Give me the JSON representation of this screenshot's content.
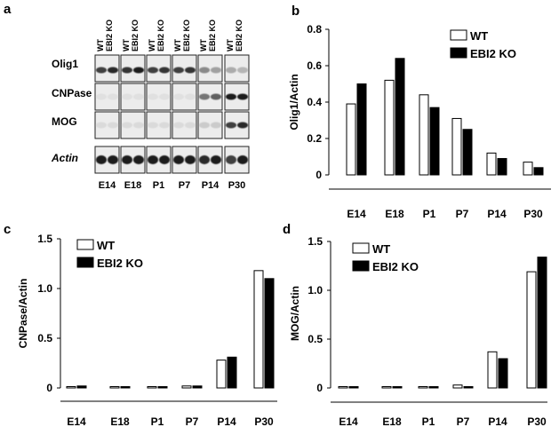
{
  "panel_letters": [
    "a",
    "b",
    "c",
    "d"
  ],
  "blot": {
    "lanes": [
      "WT",
      "EBI2 KO",
      "WT",
      "EBI2 KO",
      "WT",
      "EBI2 KO",
      "WT",
      "EBI2 KO",
      "WT",
      "EBI2 KO",
      "WT",
      "EBI2 KO"
    ],
    "rows": [
      "Olig1",
      "CNPase",
      "MOG",
      "Actin"
    ],
    "timepoints": [
      "E14",
      "E18",
      "P1",
      "P7",
      "P14",
      "P30"
    ]
  },
  "chart_data": [
    {
      "type": "bar",
      "panel": "b",
      "categories": [
        "E14",
        "E18",
        "P1",
        "P7",
        "P14",
        "P30"
      ],
      "series": [
        {
          "name": "WT",
          "values": [
            0.39,
            0.52,
            0.44,
            0.31,
            0.12,
            0.07
          ]
        },
        {
          "name": "EBI2 KO",
          "values": [
            0.5,
            0.64,
            0.37,
            0.25,
            0.09,
            0.04
          ]
        }
      ],
      "ylabel": "Olig1/Actin",
      "ylim": [
        0,
        0.8
      ],
      "yticks": [
        "0",
        "0.2",
        "0.4",
        "0.6",
        "0.8"
      ],
      "legend": "top-right",
      "colors": {
        "WT": "#ffffff",
        "EBI2 KO": "#000000"
      }
    },
    {
      "type": "bar",
      "panel": "c",
      "categories": [
        "E14",
        "E18",
        "P1",
        "P7",
        "P14",
        "P30"
      ],
      "series": [
        {
          "name": "WT",
          "values": [
            0.01,
            0.01,
            0.01,
            0.02,
            0.28,
            1.18
          ]
        },
        {
          "name": "EBI2 KO",
          "values": [
            0.02,
            0.01,
            0.01,
            0.02,
            0.31,
            1.1
          ]
        }
      ],
      "ylabel": "CNPase/Actin",
      "ylim": [
        0,
        1.5
      ],
      "yticks": [
        "0",
        "0.5",
        "1.0",
        "1.5"
      ],
      "legend": "top-left",
      "colors": {
        "WT": "#ffffff",
        "EBI2 KO": "#000000"
      }
    },
    {
      "type": "bar",
      "panel": "d",
      "categories": [
        "E14",
        "E18",
        "P1",
        "P7",
        "P14",
        "P30"
      ],
      "series": [
        {
          "name": "WT",
          "values": [
            0.0,
            0.01,
            0.01,
            0.03,
            0.37,
            1.19
          ]
        },
        {
          "name": "EBI2 KO",
          "values": [
            0.0,
            0.01,
            0.0,
            0.01,
            0.3,
            1.34
          ]
        }
      ],
      "ylabel": "MOG/Actin",
      "ylim": [
        0,
        1.5
      ],
      "yticks": [
        "0",
        "0.5",
        "1.0",
        "1.5"
      ],
      "legend": "top-left",
      "colors": {
        "WT": "#ffffff",
        "EBI2 KO": "#000000"
      }
    }
  ]
}
